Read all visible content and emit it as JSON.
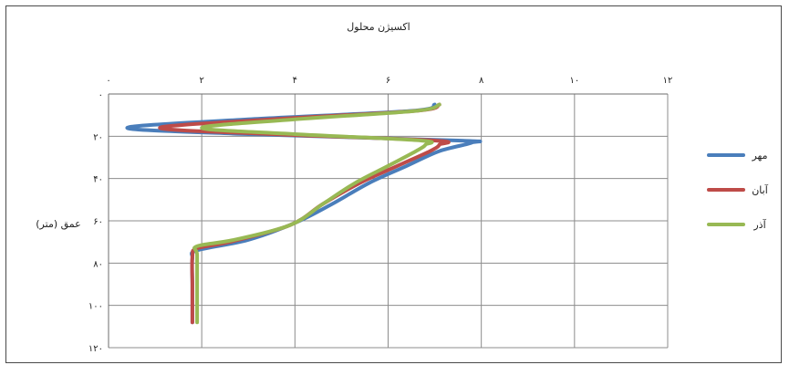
{
  "chart_data": {
    "type": "line",
    "title": "اکسیژن محلول",
    "ylabel": "عمق (متر)",
    "xlabel": "",
    "x_axis_position": "top",
    "y_inverted": true,
    "xlim": [
      0,
      12
    ],
    "ylim": [
      0,
      120
    ],
    "x_ticks": [
      0,
      2,
      4,
      6,
      8,
      10,
      12
    ],
    "y_ticks": [
      0,
      20,
      40,
      60,
      80,
      100,
      120
    ],
    "x_tick_labels": [
      "۰",
      "۲",
      "۴",
      "۶",
      "۸",
      "۱۰",
      "۱۲"
    ],
    "y_tick_labels": [
      "۰",
      "۲۰",
      "۴۰",
      "۶۰",
      "۸۰",
      "۱۰۰",
      "۱۲۰"
    ],
    "grid": true,
    "legend_position": "right",
    "series": [
      {
        "name": "مهر",
        "color": "#4a7ebb",
        "points": [
          [
            7.0,
            5
          ],
          [
            6.5,
            8
          ],
          [
            3.0,
            12
          ],
          [
            0.4,
            16
          ],
          [
            3.0,
            19
          ],
          [
            7.5,
            22
          ],
          [
            7.8,
            23
          ],
          [
            7.1,
            27
          ],
          [
            6.4,
            34
          ],
          [
            5.6,
            42
          ],
          [
            4.8,
            52
          ],
          [
            4.0,
            61
          ],
          [
            3.0,
            69
          ],
          [
            1.9,
            74
          ],
          [
            1.8,
            78
          ],
          [
            1.8,
            90
          ],
          [
            1.8,
            100
          ],
          [
            1.8,
            108
          ]
        ]
      },
      {
        "name": "آبان",
        "color": "#be4b48",
        "points": [
          [
            7.1,
            5
          ],
          [
            6.6,
            8
          ],
          [
            3.5,
            12
          ],
          [
            1.1,
            16
          ],
          [
            3.5,
            19
          ],
          [
            7.0,
            22
          ],
          [
            7.1,
            24
          ],
          [
            6.9,
            27
          ],
          [
            6.2,
            34
          ],
          [
            5.4,
            42
          ],
          [
            4.6,
            52
          ],
          [
            3.9,
            62
          ],
          [
            2.6,
            70
          ],
          [
            1.9,
            73
          ],
          [
            1.8,
            77
          ],
          [
            1.8,
            90
          ],
          [
            1.8,
            100
          ],
          [
            1.8,
            108
          ]
        ]
      },
      {
        "name": "آذر",
        "color": "#98b954",
        "points": [
          [
            7.1,
            5
          ],
          [
            6.6,
            8
          ],
          [
            4.0,
            12
          ],
          [
            2.0,
            16
          ],
          [
            4.0,
            19
          ],
          [
            6.7,
            22
          ],
          [
            6.8,
            24
          ],
          [
            6.6,
            27
          ],
          [
            6.0,
            34
          ],
          [
            5.3,
            42
          ],
          [
            4.6,
            52
          ],
          [
            3.9,
            62
          ],
          [
            2.7,
            69
          ],
          [
            1.9,
            72
          ],
          [
            1.9,
            76
          ],
          [
            1.9,
            90
          ],
          [
            1.9,
            100
          ],
          [
            1.9,
            108
          ]
        ]
      }
    ]
  }
}
